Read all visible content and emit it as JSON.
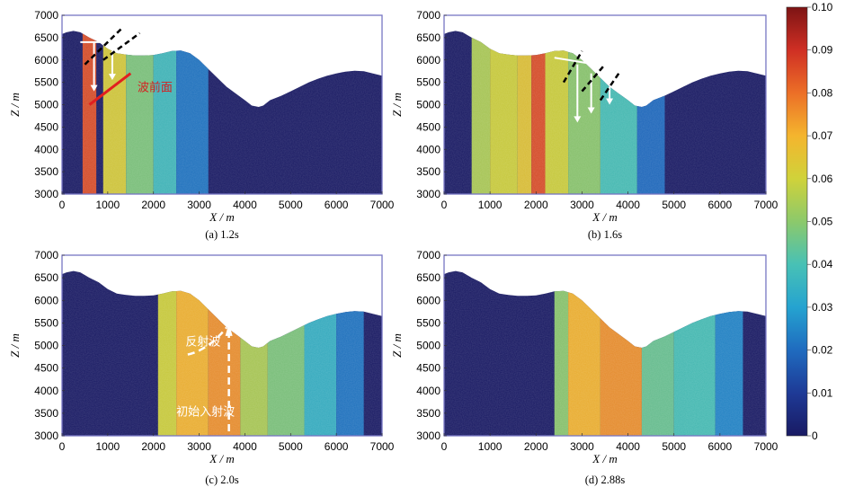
{
  "chart_data": [
    {
      "type": "heatmap",
      "caption": "(a) 1.2s",
      "xlabel": "X / m",
      "ylabel": "Z / m",
      "xlim": [
        0,
        7000
      ],
      "ylim": [
        3000,
        7000
      ],
      "xticks": [
        0,
        1000,
        2000,
        3000,
        4000,
        5000,
        6000,
        7000
      ],
      "yticks": [
        3000,
        3500,
        4000,
        4500,
        5000,
        5500,
        6000,
        6500,
        7000
      ],
      "bands": [
        [
          450,
          750,
          0.085
        ],
        [
          900,
          1400,
          0.062
        ],
        [
          1400,
          2000,
          0.048
        ],
        [
          2000,
          2500,
          0.038
        ],
        [
          2500,
          3200,
          0.022
        ]
      ],
      "annotations": [
        {
          "text": "波前面",
          "x": 1650,
          "y": 5300,
          "color": "#d42020"
        }
      ]
    },
    {
      "type": "heatmap",
      "caption": "(b) 1.6s",
      "xlabel": "X / m",
      "ylabel": "Z / m",
      "xlim": [
        0,
        7000
      ],
      "ylim": [
        3000,
        7000
      ],
      "xticks": [
        0,
        1000,
        2000,
        3000,
        4000,
        5000,
        6000,
        7000
      ],
      "yticks": [
        3000,
        3500,
        4000,
        4500,
        5000,
        5500,
        6000,
        6500,
        7000
      ],
      "bands": [
        [
          600,
          1000,
          0.055
        ],
        [
          1000,
          1600,
          0.06
        ],
        [
          1600,
          1900,
          0.065
        ],
        [
          1900,
          2200,
          0.085
        ],
        [
          2200,
          2700,
          0.06
        ],
        [
          2700,
          3400,
          0.05
        ],
        [
          3400,
          4200,
          0.04
        ],
        [
          4200,
          4800,
          0.02
        ]
      ],
      "annotations": []
    },
    {
      "type": "heatmap",
      "caption": "(c) 2.0s",
      "xlabel": "X / m",
      "ylabel": "Z / m",
      "xlim": [
        0,
        7000
      ],
      "ylim": [
        3000,
        7000
      ],
      "xticks": [
        0,
        1000,
        2000,
        3000,
        4000,
        5000,
        6000,
        7000
      ],
      "yticks": [
        3000,
        3500,
        4000,
        4500,
        5000,
        5500,
        6000,
        6500,
        7000
      ],
      "bands": [
        [
          2100,
          2500,
          0.06
        ],
        [
          2500,
          3200,
          0.07
        ],
        [
          3200,
          3900,
          0.075
        ],
        [
          3900,
          4500,
          0.055
        ],
        [
          4500,
          5300,
          0.048
        ],
        [
          5300,
          6000,
          0.035
        ],
        [
          6000,
          6600,
          0.022
        ]
      ],
      "annotations": [
        {
          "text": "反射波",
          "x": 2700,
          "y": 5000,
          "color": "#ffffff"
        },
        {
          "text": "初始入射波",
          "x": 2500,
          "y": 3450,
          "color": "#ffffff"
        }
      ]
    },
    {
      "type": "heatmap",
      "caption": "(d) 2.88s",
      "xlabel": "X / m",
      "ylabel": "Z / m",
      "xlim": [
        0,
        7000
      ],
      "ylim": [
        3000,
        7000
      ],
      "xticks": [
        0,
        1000,
        2000,
        3000,
        4000,
        5000,
        6000,
        7000
      ],
      "yticks": [
        3000,
        3500,
        4000,
        4500,
        5000,
        5500,
        6000,
        6500,
        7000
      ],
      "bands": [
        [
          2400,
          2700,
          0.05
        ],
        [
          2700,
          3400,
          0.07
        ],
        [
          3400,
          4300,
          0.075
        ],
        [
          4300,
          5000,
          0.045
        ],
        [
          5000,
          5900,
          0.04
        ],
        [
          5900,
          6500,
          0.025
        ]
      ],
      "annotations": []
    }
  ],
  "colorbar": {
    "min": 0,
    "max": 0.1,
    "ticks": [
      "0",
      "0.01",
      "0.02",
      "0.03",
      "0.04",
      "0.05",
      "0.06",
      "0.07",
      "0.08",
      "0.09",
      "0.10"
    ],
    "colors": [
      "#191a63",
      "#1e3a96",
      "#1f6bbf",
      "#25a3d0",
      "#48c1b5",
      "#8cc96b",
      "#d0d23a",
      "#f4b52e",
      "#ec6f27",
      "#cf2f24",
      "#7d1414"
    ]
  }
}
